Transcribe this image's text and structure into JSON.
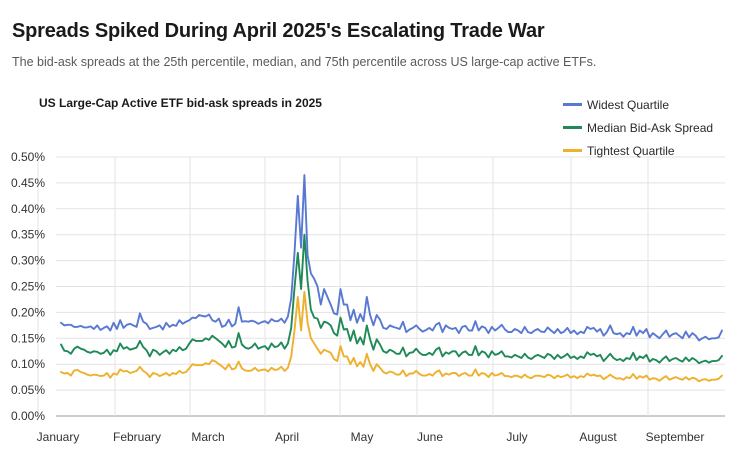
{
  "header": {
    "title": "Spreads Spiked During April 2025's Escalating Trade War",
    "subtitle": "The bid-ask spreads at the 25th percentile, median, and 75th percentile across US large-cap active ETFs."
  },
  "chart_data": {
    "type": "line",
    "title": "US Large-Cap Active ETF bid-ask spreads in 2025",
    "xlabel": "",
    "ylabel": "",
    "ylim": [
      0,
      0.5
    ],
    "yticks": [
      "0.00%",
      "0.05%",
      "0.10%",
      "0.15%",
      "0.20%",
      "0.25%",
      "0.30%",
      "0.35%",
      "0.40%",
      "0.45%",
      "0.50%"
    ],
    "month_labels": [
      "January",
      "February",
      "March",
      "April",
      "May",
      "June",
      "July",
      "August",
      "September"
    ],
    "grid": true,
    "legend_position": "top-right",
    "series": [
      {
        "name": "Widest Quartile",
        "color": "#5878d2",
        "values": [
          0.18,
          0.175,
          0.176,
          0.176,
          0.172,
          0.172,
          0.174,
          0.171,
          0.171,
          0.173,
          0.168,
          0.175,
          0.166,
          0.17,
          0.173,
          0.165,
          0.18,
          0.168,
          0.185,
          0.17,
          0.176,
          0.178,
          0.175,
          0.172,
          0.198,
          0.182,
          0.178,
          0.168,
          0.17,
          0.172,
          0.175,
          0.167,
          0.18,
          0.172,
          0.176,
          0.174,
          0.185,
          0.178,
          0.182,
          0.185,
          0.19,
          0.189,
          0.195,
          0.193,
          0.192,
          0.196,
          0.185,
          0.182,
          0.188,
          0.172,
          0.175,
          0.186,
          0.173,
          0.178,
          0.21,
          0.182,
          0.183,
          0.182,
          0.184,
          0.182,
          0.178,
          0.181,
          0.183,
          0.179,
          0.187,
          0.183,
          0.183,
          0.188,
          0.18,
          0.192,
          0.227,
          0.315,
          0.425,
          0.325,
          0.465,
          0.31,
          0.275,
          0.265,
          0.25,
          0.215,
          0.245,
          0.23,
          0.215,
          0.198,
          0.196,
          0.245,
          0.215,
          0.215,
          0.185,
          0.205,
          0.18,
          0.197,
          0.183,
          0.23,
          0.195,
          0.175,
          0.195,
          0.186,
          0.17,
          0.168,
          0.175,
          0.172,
          0.17,
          0.168,
          0.182,
          0.162,
          0.167,
          0.17,
          0.175,
          0.168,
          0.163,
          0.166,
          0.17,
          0.165,
          0.176,
          0.18,
          0.162,
          0.175,
          0.17,
          0.168,
          0.17,
          0.16,
          0.172,
          0.174,
          0.165,
          0.165,
          0.183,
          0.165,
          0.173,
          0.17,
          0.16,
          0.172,
          0.165,
          0.17,
          0.176,
          0.167,
          0.162,
          0.162,
          0.168,
          0.165,
          0.16,
          0.172,
          0.162,
          0.16,
          0.165,
          0.168,
          0.163,
          0.162,
          0.171,
          0.165,
          0.16,
          0.168,
          0.16,
          0.163,
          0.17,
          0.16,
          0.165,
          0.158,
          0.163,
          0.16,
          0.172,
          0.168,
          0.17,
          0.163,
          0.168,
          0.155,
          0.162,
          0.175,
          0.16,
          0.158,
          0.16,
          0.153,
          0.16,
          0.158,
          0.172,
          0.155,
          0.165,
          0.16,
          0.168,
          0.152,
          0.16,
          0.155,
          0.15,
          0.158,
          0.165,
          0.153,
          0.158,
          0.16,
          0.155,
          0.15,
          0.163,
          0.152,
          0.16,
          0.155,
          0.146,
          0.15,
          0.153,
          0.148,
          0.15,
          0.15,
          0.152,
          0.165
        ]
      },
      {
        "name": "Median Bid-Ask Spread",
        "color": "#1f8a57",
        "values": [
          0.138,
          0.126,
          0.125,
          0.12,
          0.13,
          0.134,
          0.13,
          0.128,
          0.124,
          0.122,
          0.125,
          0.124,
          0.12,
          0.122,
          0.128,
          0.118,
          0.127,
          0.125,
          0.14,
          0.13,
          0.133,
          0.128,
          0.13,
          0.132,
          0.145,
          0.133,
          0.127,
          0.115,
          0.128,
          0.125,
          0.118,
          0.123,
          0.127,
          0.12,
          0.128,
          0.125,
          0.133,
          0.127,
          0.13,
          0.14,
          0.148,
          0.145,
          0.145,
          0.145,
          0.15,
          0.147,
          0.155,
          0.15,
          0.145,
          0.14,
          0.133,
          0.145,
          0.132,
          0.134,
          0.16,
          0.138,
          0.132,
          0.13,
          0.133,
          0.14,
          0.13,
          0.133,
          0.135,
          0.128,
          0.14,
          0.133,
          0.135,
          0.142,
          0.13,
          0.14,
          0.17,
          0.247,
          0.315,
          0.245,
          0.35,
          0.26,
          0.205,
          0.19,
          0.188,
          0.17,
          0.182,
          0.18,
          0.175,
          0.16,
          0.155,
          0.19,
          0.167,
          0.168,
          0.145,
          0.165,
          0.14,
          0.152,
          0.138,
          0.175,
          0.148,
          0.128,
          0.148,
          0.138,
          0.125,
          0.122,
          0.128,
          0.125,
          0.12,
          0.12,
          0.132,
          0.115,
          0.122,
          0.123,
          0.13,
          0.122,
          0.118,
          0.118,
          0.122,
          0.118,
          0.128,
          0.132,
          0.115,
          0.123,
          0.12,
          0.125,
          0.125,
          0.115,
          0.122,
          0.125,
          0.118,
          0.118,
          0.135,
          0.117,
          0.125,
          0.122,
          0.113,
          0.125,
          0.118,
          0.12,
          0.125,
          0.115,
          0.115,
          0.113,
          0.118,
          0.115,
          0.112,
          0.12,
          0.113,
          0.11,
          0.115,
          0.118,
          0.115,
          0.112,
          0.12,
          0.117,
          0.11,
          0.118,
          0.112,
          0.115,
          0.12,
          0.112,
          0.115,
          0.11,
          0.115,
          0.112,
          0.123,
          0.118,
          0.12,
          0.115,
          0.118,
          0.106,
          0.113,
          0.12,
          0.112,
          0.108,
          0.11,
          0.106,
          0.112,
          0.11,
          0.122,
          0.108,
          0.115,
          0.112,
          0.118,
          0.105,
          0.11,
          0.108,
          0.103,
          0.11,
          0.115,
          0.106,
          0.11,
          0.112,
          0.108,
          0.105,
          0.113,
          0.106,
          0.112,
          0.108,
          0.102,
          0.105,
          0.107,
          0.103,
          0.106,
          0.106,
          0.108,
          0.116
        ]
      },
      {
        "name": "Tightest Quartile",
        "color": "#eeb02d",
        "values": [
          0.085,
          0.082,
          0.083,
          0.078,
          0.088,
          0.089,
          0.085,
          0.083,
          0.08,
          0.078,
          0.08,
          0.079,
          0.077,
          0.078,
          0.083,
          0.074,
          0.082,
          0.08,
          0.09,
          0.086,
          0.087,
          0.083,
          0.085,
          0.087,
          0.095,
          0.087,
          0.083,
          0.075,
          0.083,
          0.081,
          0.077,
          0.08,
          0.083,
          0.078,
          0.083,
          0.081,
          0.087,
          0.083,
          0.085,
          0.092,
          0.1,
          0.098,
          0.098,
          0.098,
          0.102,
          0.1,
          0.108,
          0.105,
          0.1,
          0.096,
          0.09,
          0.1,
          0.09,
          0.092,
          0.105,
          0.092,
          0.088,
          0.087,
          0.088,
          0.093,
          0.087,
          0.089,
          0.09,
          0.086,
          0.093,
          0.089,
          0.09,
          0.095,
          0.087,
          0.093,
          0.115,
          0.165,
          0.23,
          0.165,
          0.24,
          0.18,
          0.15,
          0.14,
          0.13,
          0.12,
          0.128,
          0.125,
          0.122,
          0.11,
          0.106,
          0.135,
          0.115,
          0.115,
          0.1,
          0.112,
          0.096,
          0.104,
          0.095,
          0.12,
          0.1,
          0.087,
          0.1,
          0.093,
          0.085,
          0.082,
          0.086,
          0.084,
          0.08,
          0.08,
          0.088,
          0.077,
          0.082,
          0.082,
          0.087,
          0.081,
          0.078,
          0.078,
          0.081,
          0.078,
          0.085,
          0.088,
          0.077,
          0.082,
          0.08,
          0.083,
          0.083,
          0.077,
          0.081,
          0.083,
          0.078,
          0.078,
          0.09,
          0.078,
          0.083,
          0.081,
          0.075,
          0.083,
          0.078,
          0.08,
          0.083,
          0.077,
          0.077,
          0.075,
          0.078,
          0.077,
          0.074,
          0.08,
          0.075,
          0.073,
          0.077,
          0.078,
          0.077,
          0.075,
          0.08,
          0.078,
          0.073,
          0.078,
          0.075,
          0.077,
          0.08,
          0.074,
          0.077,
          0.073,
          0.077,
          0.075,
          0.082,
          0.078,
          0.08,
          0.077,
          0.078,
          0.071,
          0.075,
          0.08,
          0.075,
          0.072,
          0.073,
          0.07,
          0.075,
          0.073,
          0.081,
          0.072,
          0.077,
          0.074,
          0.078,
          0.07,
          0.073,
          0.072,
          0.068,
          0.073,
          0.077,
          0.07,
          0.073,
          0.075,
          0.072,
          0.07,
          0.075,
          0.07,
          0.074,
          0.072,
          0.067,
          0.07,
          0.071,
          0.068,
          0.07,
          0.07,
          0.072,
          0.078
        ]
      }
    ]
  }
}
